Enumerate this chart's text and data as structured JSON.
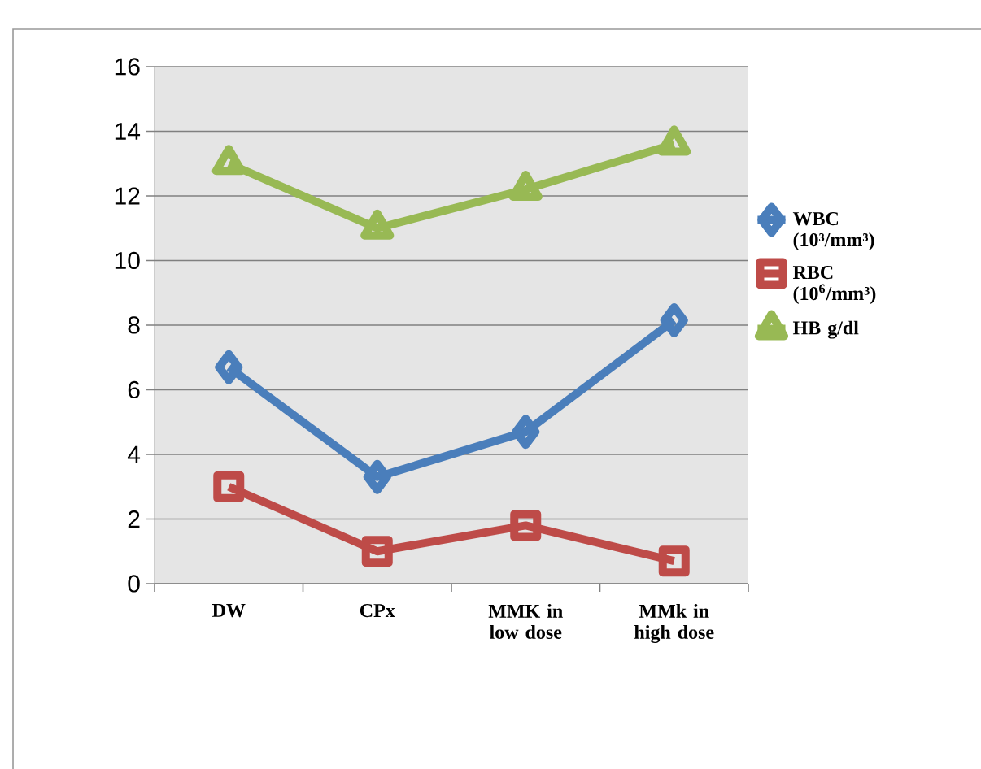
{
  "chart_data": {
    "type": "line",
    "categories": [
      "DW",
      "CPx",
      "MMK in low dose",
      "MMk in high dose"
    ],
    "series": [
      {
        "name": "WBC (10³/mm³)",
        "color": "#4a7ebb",
        "marker": "diamond",
        "values": [
          6.7,
          3.3,
          4.7,
          8.15
        ]
      },
      {
        "name": "RBC (10$^{6}$/mm³)",
        "color": "#be4b48",
        "marker": "square",
        "values": [
          3.0,
          1.0,
          1.8,
          0.7
        ]
      },
      {
        "name": "HB g/dl",
        "color": "#98b954",
        "marker": "triangle",
        "values": [
          13.0,
          11.0,
          12.2,
          13.6
        ]
      }
    ],
    "ylim": [
      0,
      16
    ],
    "yticks": [
      0,
      2,
      4,
      6,
      8,
      10,
      12,
      14,
      16
    ],
    "grid": "y",
    "legend": "right",
    "line_style": "solid"
  }
}
